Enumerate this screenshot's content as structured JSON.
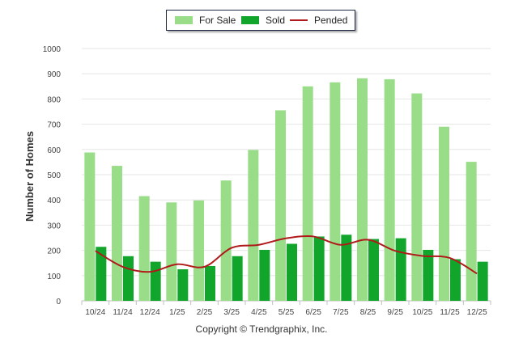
{
  "chart_data": {
    "type": "bar",
    "title": "",
    "xlabel": "",
    "ylabel": "Number of Homes",
    "ylim": [
      0,
      1000
    ],
    "yticks": [
      "0",
      "100",
      "200",
      "300",
      "400",
      "500",
      "600",
      "700",
      "800",
      "900",
      "1000"
    ],
    "categories": [
      "10/24",
      "11/24",
      "12/24",
      "1/25",
      "2/25",
      "3/25",
      "4/25",
      "5/25",
      "6/25",
      "7/25",
      "8/25",
      "9/25",
      "10/25",
      "11/25",
      "12/25"
    ],
    "series": [
      {
        "name": "For Sale",
        "kind": "bar",
        "color": "#99dd88",
        "values": [
          588,
          535,
          415,
          390,
          398,
          477,
          598,
          755,
          850,
          866,
          882,
          878,
          822,
          690,
          551
        ]
      },
      {
        "name": "Sold",
        "kind": "bar",
        "color": "#11a62b",
        "values": [
          214,
          177,
          155,
          125,
          138,
          177,
          202,
          226,
          255,
          262,
          245,
          248,
          202,
          165,
          155
        ]
      },
      {
        "name": "Pended",
        "kind": "line",
        "color": "#b01a1a",
        "values": [
          198,
          135,
          115,
          145,
          135,
          210,
          222,
          248,
          255,
          222,
          242,
          198,
          178,
          170,
          108
        ]
      }
    ],
    "legend_position": "top-center",
    "grid": true
  },
  "footer": {
    "copyright": "Copyright © Trendgraphix, Inc."
  }
}
